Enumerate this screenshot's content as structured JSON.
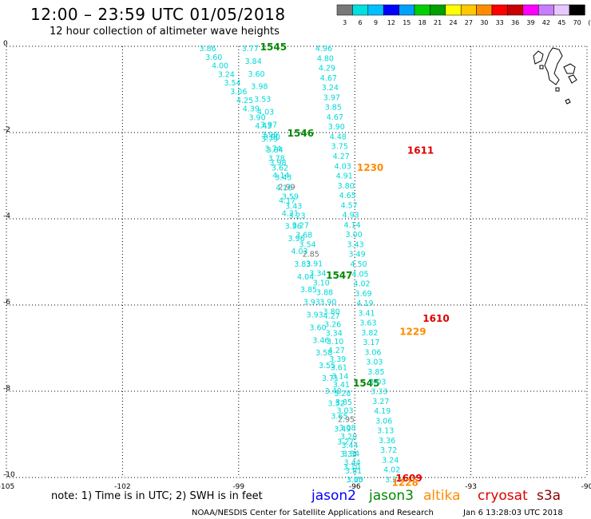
{
  "header": {
    "title": "12:00 – 23:59 UTC 01/05/2018",
    "subtitle": "12 hour collection of altimeter wave heights"
  },
  "scale": {
    "unit": "(ft)",
    "labels": [
      "3",
      "6",
      "9",
      "12",
      "15",
      "18",
      "21",
      "24",
      "27",
      "30",
      "33",
      "36",
      "39",
      "42",
      "45",
      "70"
    ],
    "colors": [
      "#787878",
      "#00e0e0",
      "#00bfff",
      "#0000ff",
      "#00a0ff",
      "#00d000",
      "#00a000",
      "#ffff00",
      "#ffc800",
      "#ff8c00",
      "#ff0000",
      "#c80000",
      "#ff00ff",
      "#c87dff",
      "#e6c8ff",
      "#000000"
    ]
  },
  "axes": {
    "x_ticks": [
      "-105",
      "-102",
      "-99",
      "-96",
      "-93",
      "-90"
    ],
    "y_ticks": [
      "0",
      "-2",
      "-4",
      "-6",
      "-8",
      "-10"
    ]
  },
  "footer": {
    "note": "note: 1) Time is in UTC; 2) SWH is in feet",
    "sources": [
      {
        "name": "jason2",
        "color": "#0000ff"
      },
      {
        "name": "jason3",
        "color": "#008800"
      },
      {
        "name": "altika",
        "color": "#ff8c00"
      },
      {
        "name": "cryosat",
        "color": "#dd0000"
      },
      {
        "name": "s3a",
        "color": "#880000"
      }
    ],
    "credit": "NOAA/NESDIS Center for Satellite Applications and Research",
    "timestamp": "Jan  6 13:28:03 UTC 2018"
  },
  "passes": [
    {
      "name": "jason3-pass-1545a",
      "color": "#008800",
      "label": "1545",
      "label_lon": -98.1,
      "label_lat": 0.0,
      "start": [
        -99.8,
        0.0
      ],
      "end": [
        -98.2,
        -2.0
      ],
      "values": [
        "3.86",
        "3.60",
        "4.00",
        "3.24",
        "3.54",
        "3.06",
        "4.25",
        "4.39",
        "3.90",
        "4.43",
        "3.99"
      ]
    },
    {
      "name": "jason3-pass-1546",
      "color": "#008800",
      "label": "1546",
      "label_lon": -97.4,
      "label_lat": -2.0,
      "start": [
        -98.2,
        -2.1
      ],
      "end": [
        -96.6,
        -6.1
      ],
      "values": [
        "3.79",
        "3.74",
        "3.78",
        "3.62",
        "3.43",
        "2.99",
        "3.59",
        "3.43",
        "3.23",
        "3.27",
        "3.68",
        "3.54",
        "2.85",
        "3.91",
        "3.34",
        "3.10",
        "3.88",
        "3.90",
        "3.80"
      ]
    },
    {
      "name": "jason3-pass-1547",
      "color": "#008800",
      "label": "1547",
      "label_lon": -96.4,
      "label_lat": -5.3,
      "start": [
        -96.6,
        -6.2
      ],
      "end": [
        -96.0,
        -10.0
      ],
      "values": [
        "4.27",
        "3.26",
        "3.34",
        "3.10",
        "4.27",
        "3.39",
        "3.61",
        "3.14",
        "3.41",
        "3.28",
        "3.85",
        "3.03",
        "2.95",
        "3.08",
        "3.20",
        "3.44",
        "3.34",
        "3.44",
        "3.81",
        "3.10"
      ]
    },
    {
      "name": "jason3-pass-1545b",
      "color": "#008800",
      "label": "1545",
      "label_lon": -95.7,
      "label_lat": -7.8,
      "start": [
        -98.7,
        0.0
      ],
      "end": [
        -96.0,
        -10.0
      ],
      "values": [
        "3.77",
        "3.84",
        "3.60",
        "3.98",
        "3.53",
        "4.03",
        "3.97",
        "3.90",
        "3.84",
        "3.98",
        "4.14",
        "4.16",
        "4.17",
        "4.21",
        "3.96",
        "3.96",
        "4.03",
        "3.83",
        "4.04",
        "3.85",
        "3.93",
        "3.93",
        "3.60",
        "3.46",
        "3.58",
        "3.55",
        "3.71",
        "3.40",
        "3.52",
        "3.65",
        "3.49",
        "3.27",
        "3.33",
        "3.10",
        "3.05"
      ]
    },
    {
      "name": "jason3-pass-1545c",
      "color": "#008800",
      "label": "",
      "label_lon": -95.0,
      "label_lat": 0.0,
      "start": [
        -96.8,
        0.0
      ],
      "end": [
        -95.0,
        -10.0
      ],
      "values": [
        "4.96",
        "4.80",
        "4.29",
        "4.67",
        "3.24",
        "3.97",
        "3.85",
        "4.67",
        "3.90",
        "4.48",
        "3.75",
        "4.27",
        "4.03",
        "4.91",
        "3.80",
        "4.65",
        "4.57",
        "4.93",
        "4.14",
        "3.00",
        "3.43",
        "3.49",
        "4.50",
        "4.05",
        "4.02",
        "3.69",
        "4.19",
        "3.41",
        "3.63",
        "3.82",
        "3.17",
        "3.06",
        "3.03",
        "3.85",
        "3.03",
        "3.33",
        "3.27",
        "4.19",
        "3.06",
        "3.13",
        "3.36",
        "3.72",
        "3.24",
        "4.02",
        "3.27"
      ]
    }
  ],
  "markers": [
    {
      "label": "1611",
      "color": "#dd0000",
      "lon": -94.3,
      "lat": -2.4
    },
    {
      "label": "1230",
      "color": "#ff8c00",
      "lon": -95.6,
      "lat": -2.8
    },
    {
      "label": "1610",
      "color": "#dd0000",
      "lon": -93.9,
      "lat": -6.3
    },
    {
      "label": "1229",
      "color": "#ff8c00",
      "lon": -94.5,
      "lat": -6.6
    },
    {
      "label": "1609",
      "color": "#dd0000",
      "lon": -94.6,
      "lat": -10.0
    },
    {
      "label": "1228",
      "color": "#ff8c00",
      "lon": -94.7,
      "lat": -10.1
    }
  ]
}
